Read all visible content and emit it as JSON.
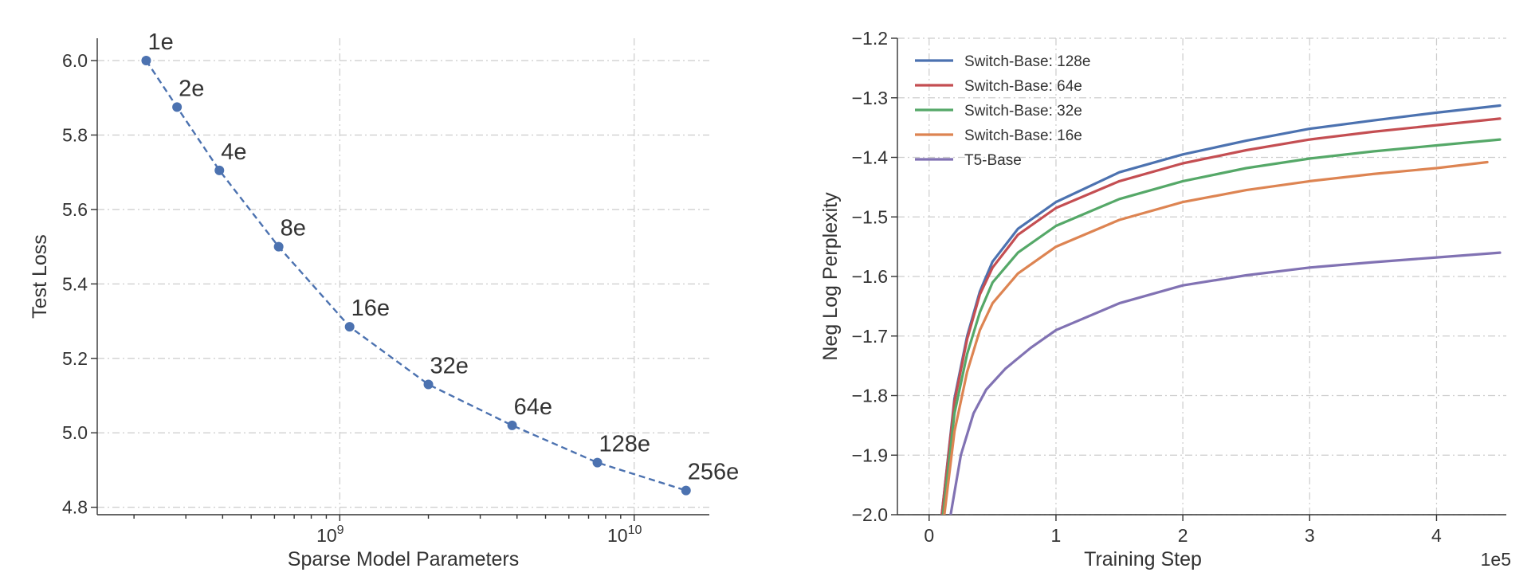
{
  "chart_data": [
    {
      "type": "line",
      "xlabel": "Sparse Model Parameters",
      "ylabel": "Test Loss",
      "x_scale": "log",
      "xlim": [
        150000000,
        18000000000
      ],
      "ylim": [
        4.78,
        6.06
      ],
      "grid": true,
      "x_ticks": [
        {
          "value": 1000000000,
          "base": "10",
          "exp": "9"
        },
        {
          "value": 10000000000,
          "base": "10",
          "exp": "10"
        }
      ],
      "y_ticks": [
        {
          "value": 4.8,
          "label": "4.8"
        },
        {
          "value": 5.0,
          "label": "5.0"
        },
        {
          "value": 5.2,
          "label": "5.2"
        },
        {
          "value": 5.4,
          "label": "5.4"
        },
        {
          "value": 5.6,
          "label": "5.6"
        },
        {
          "value": 5.8,
          "label": "5.8"
        },
        {
          "value": 6.0,
          "label": "6.0"
        }
      ],
      "color": "#4c72b0",
      "style": "dashed with circle markers",
      "points": [
        {
          "label": "1e",
          "x": 220000000,
          "y": 6.0
        },
        {
          "label": "2e",
          "x": 280000000,
          "y": 5.875
        },
        {
          "label": "4e",
          "x": 390000000,
          "y": 5.705
        },
        {
          "label": "8e",
          "x": 620000000,
          "y": 5.5
        },
        {
          "label": "16e",
          "x": 1080000000,
          "y": 5.285
        },
        {
          "label": "32e",
          "x": 2000000000,
          "y": 5.13
        },
        {
          "label": "64e",
          "x": 3850000000,
          "y": 5.02
        },
        {
          "label": "128e",
          "x": 7500000000,
          "y": 4.92
        },
        {
          "label": "256e",
          "x": 15000000000,
          "y": 4.845
        }
      ]
    },
    {
      "type": "line",
      "xlabel": "Training Step",
      "x_scale_label": "1e5",
      "ylabel": "Neg Log Perplexity",
      "xlim": [
        -0.25,
        4.55
      ],
      "ylim": [
        -2.0,
        -1.2
      ],
      "grid": true,
      "legend_position": "top-left",
      "x_ticks": [
        {
          "value": 0,
          "label": "0"
        },
        {
          "value": 1,
          "label": "1"
        },
        {
          "value": 2,
          "label": "2"
        },
        {
          "value": 3,
          "label": "3"
        },
        {
          "value": 4,
          "label": "4"
        }
      ],
      "y_ticks": [
        {
          "value": -2.0,
          "label": "−2.0"
        },
        {
          "value": -1.9,
          "label": "−1.9"
        },
        {
          "value": -1.8,
          "label": "−1.8"
        },
        {
          "value": -1.7,
          "label": "−1.7"
        },
        {
          "value": -1.6,
          "label": "−1.6"
        },
        {
          "value": -1.5,
          "label": "−1.5"
        },
        {
          "value": -1.4,
          "label": "−1.4"
        },
        {
          "value": -1.3,
          "label": "−1.3"
        },
        {
          "value": -1.2,
          "label": "−1.2"
        }
      ],
      "series": [
        {
          "name": "Switch-Base: 128e",
          "color": "#4c72b0",
          "x": [
            0.1,
            0.2,
            0.3,
            0.4,
            0.5,
            0.7,
            1.0,
            1.5,
            2.0,
            2.5,
            3.0,
            3.5,
            4.0,
            4.5
          ],
          "y": [
            -2.0,
            -1.805,
            -1.7,
            -1.625,
            -1.575,
            -1.52,
            -1.475,
            -1.425,
            -1.395,
            -1.372,
            -1.352,
            -1.338,
            -1.325,
            -1.313
          ]
        },
        {
          "name": "Switch-Base: 64e",
          "color": "#c44e52",
          "x": [
            0.1,
            0.2,
            0.3,
            0.4,
            0.5,
            0.7,
            1.0,
            1.5,
            2.0,
            2.5,
            3.0,
            3.5,
            4.0,
            4.5
          ],
          "y": [
            -2.0,
            -1.81,
            -1.705,
            -1.63,
            -1.585,
            -1.53,
            -1.485,
            -1.44,
            -1.41,
            -1.388,
            -1.37,
            -1.357,
            -1.346,
            -1.335
          ]
        },
        {
          "name": "Switch-Base: 32e",
          "color": "#55a868",
          "x": [
            0.11,
            0.2,
            0.3,
            0.4,
            0.5,
            0.7,
            1.0,
            1.5,
            2.0,
            2.5,
            3.0,
            3.5,
            4.0,
            4.5
          ],
          "y": [
            -2.0,
            -1.83,
            -1.73,
            -1.66,
            -1.61,
            -1.56,
            -1.515,
            -1.47,
            -1.44,
            -1.418,
            -1.402,
            -1.39,
            -1.38,
            -1.37
          ]
        },
        {
          "name": "Switch-Base: 16e",
          "color": "#dd8452",
          "x": [
            0.12,
            0.2,
            0.3,
            0.4,
            0.5,
            0.7,
            1.0,
            1.5,
            2.0,
            2.5,
            3.0,
            3.5,
            4.0,
            4.4
          ],
          "y": [
            -2.0,
            -1.86,
            -1.76,
            -1.69,
            -1.645,
            -1.595,
            -1.55,
            -1.505,
            -1.475,
            -1.455,
            -1.44,
            -1.428,
            -1.418,
            -1.408
          ]
        },
        {
          "name": "T5-Base",
          "color": "#8172b3",
          "x": [
            0.17,
            0.25,
            0.35,
            0.45,
            0.6,
            0.8,
            1.0,
            1.5,
            2.0,
            2.5,
            3.0,
            3.5,
            4.0,
            4.5
          ],
          "y": [
            -2.0,
            -1.9,
            -1.83,
            -1.79,
            -1.755,
            -1.72,
            -1.69,
            -1.645,
            -1.615,
            -1.598,
            -1.585,
            -1.576,
            -1.568,
            -1.56
          ]
        }
      ]
    }
  ]
}
